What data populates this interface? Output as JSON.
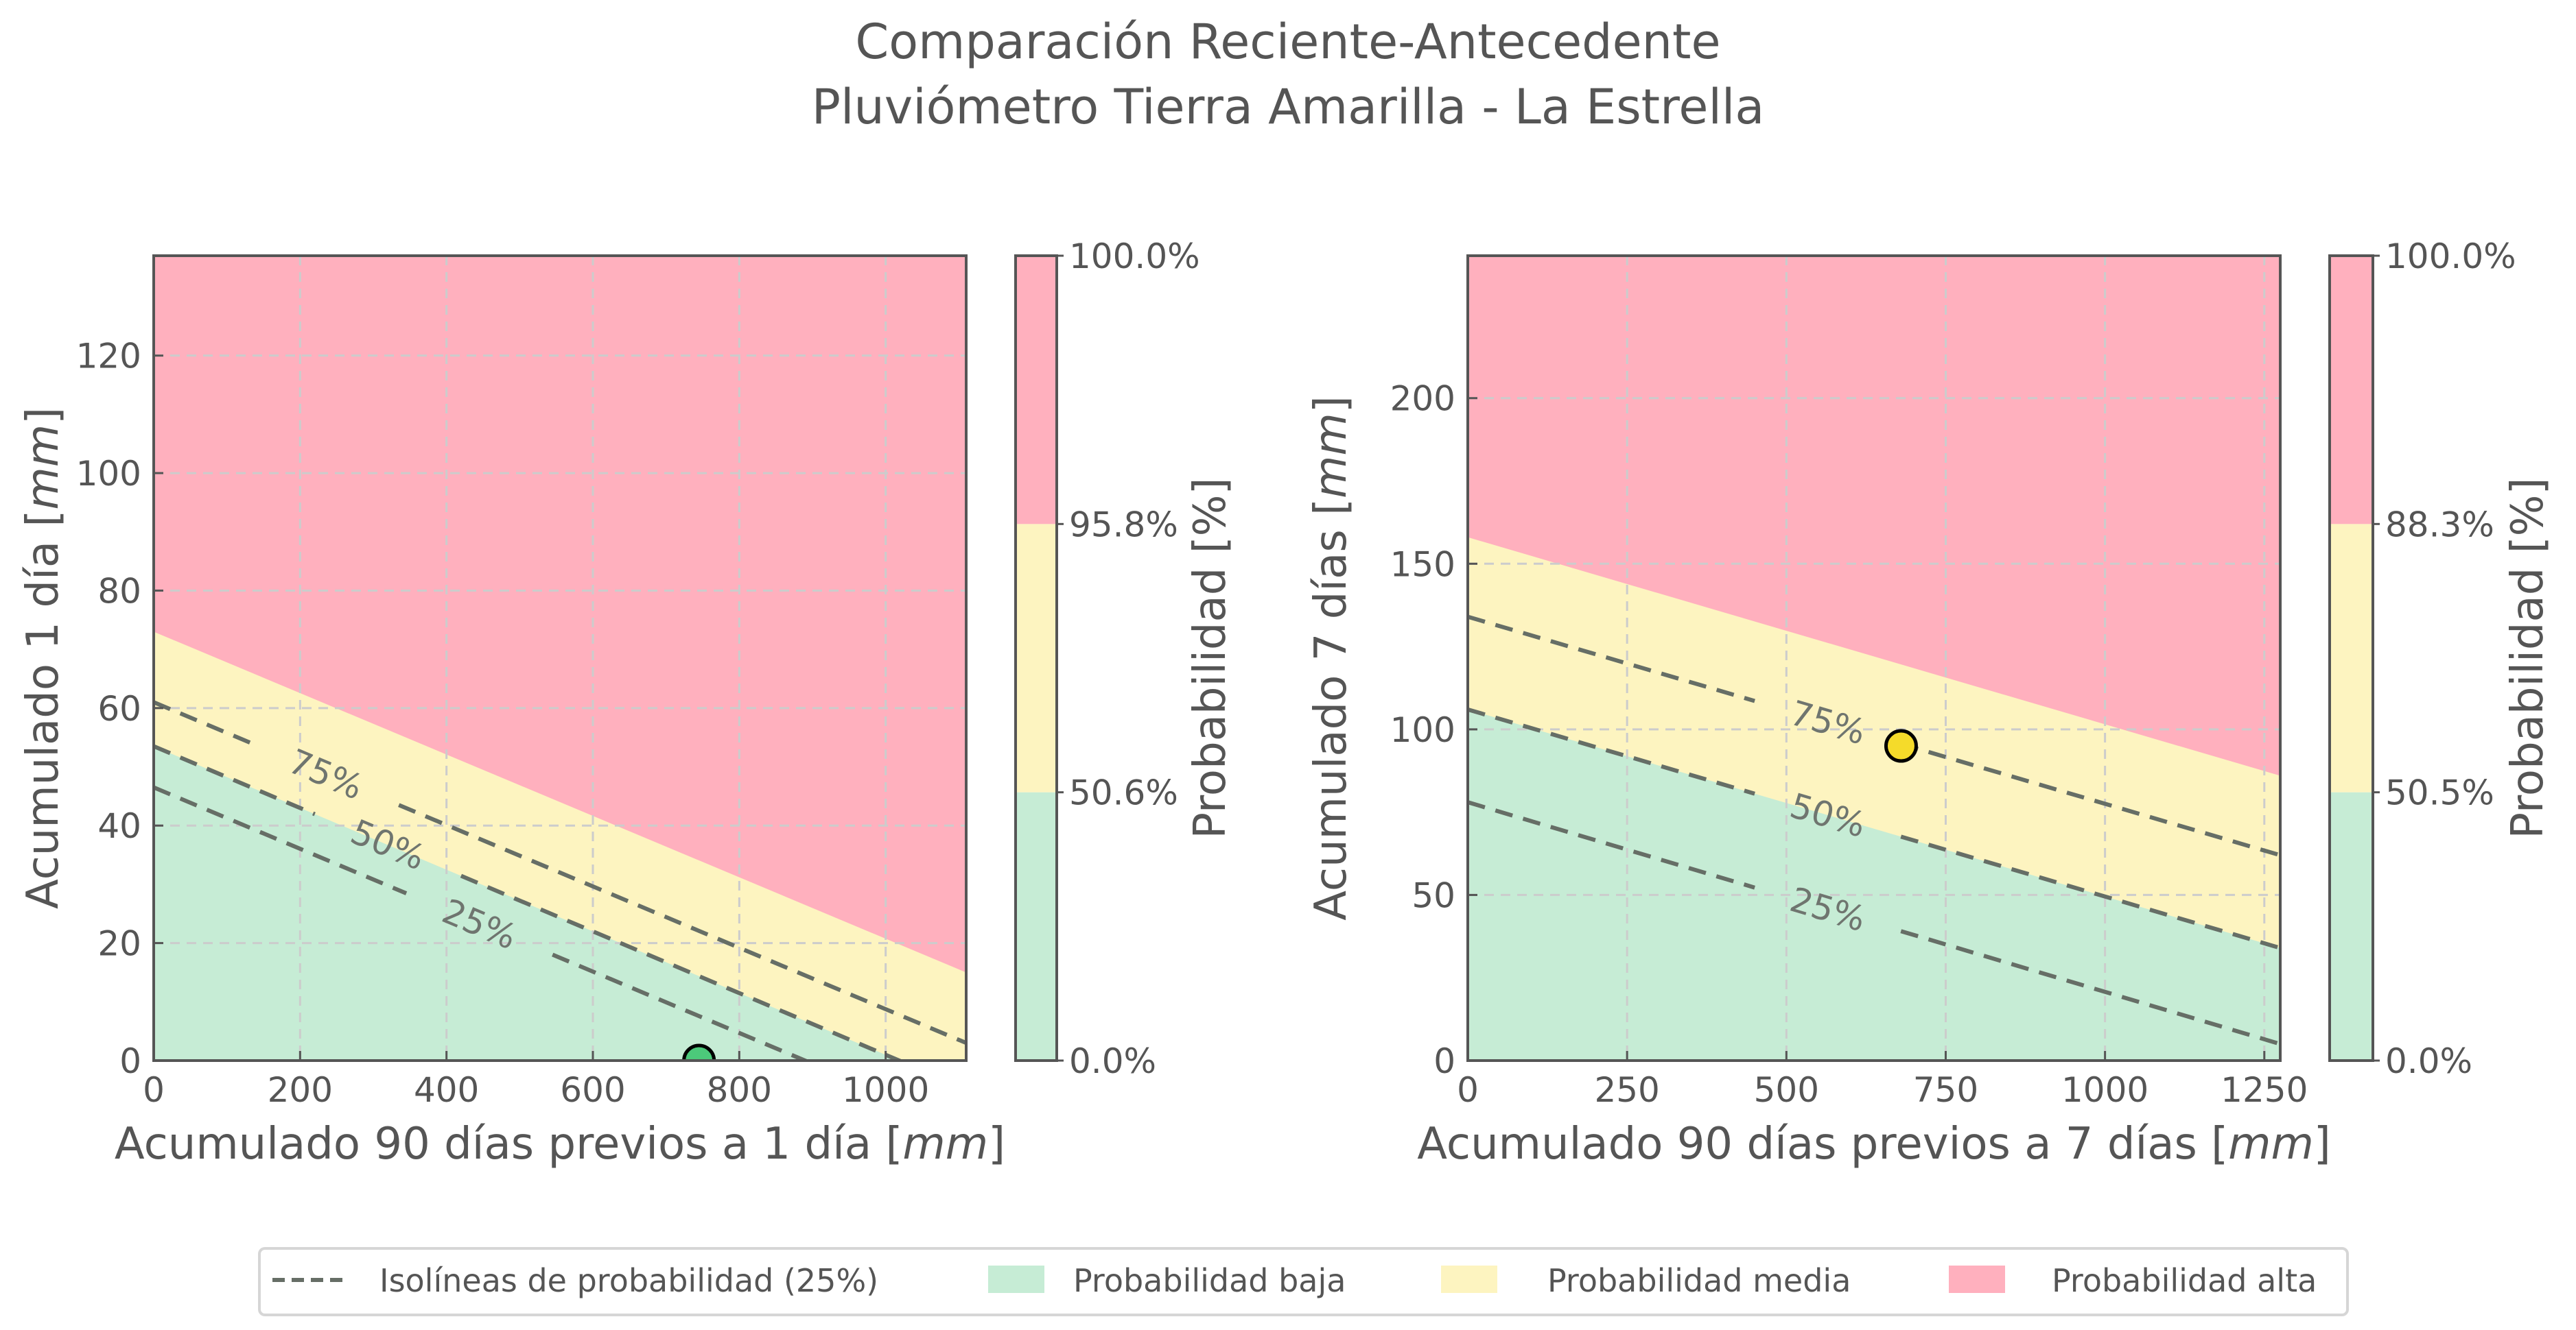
{
  "title": {
    "line1": "Comparación Reciente-Antecedente",
    "line2": "Pluviómetro Tierra Amarilla - La Estrella"
  },
  "colors": {
    "low": "#c6ecd5",
    "medium": "#fdf4c0",
    "high": "#ffb0be",
    "isoline": "#666e66",
    "text": "#555555"
  },
  "legend": {
    "placement": "bottom-center",
    "items": [
      {
        "label": "Isolíneas de probabilidad (25%)",
        "kind": "dashed-line"
      },
      {
        "label": "Probabilidad baja",
        "kind": "patch",
        "color": "#c6ecd5"
      },
      {
        "label": "Probabilidad media",
        "kind": "patch",
        "color": "#fdf4c0"
      },
      {
        "label": "Probabilidad alta",
        "kind": "patch",
        "color": "#ffb0be"
      }
    ]
  },
  "chart_data": [
    {
      "type": "area",
      "xlabel": "Acumulado 90 días previos a 1 día",
      "xlabel_unit": "mm",
      "ylabel": "Acumulado 1 día",
      "ylabel_unit": "mm",
      "xlim": [
        0,
        1110
      ],
      "ylim": [
        0,
        137
      ],
      "xticks": [
        0,
        200,
        400,
        600,
        800,
        1000
      ],
      "yticks": [
        0,
        20,
        40,
        60,
        80,
        100,
        120
      ],
      "grid": true,
      "regions": {
        "low_medium_boundary": [
          [
            0,
            53.5
          ],
          [
            1110,
            -4.8
          ]
        ],
        "medium_high_boundary": [
          [
            0,
            73
          ],
          [
            1110,
            15
          ]
        ]
      },
      "isolines": [
        {
          "label": "75%",
          "line": [
            [
              0,
              61
            ],
            [
              1110,
              3
            ]
          ],
          "label_at": [
            235,
            48.7
          ]
        },
        {
          "label": "50%",
          "line": [
            [
              0,
              53.5
            ],
            [
              1110,
              -4.8
            ]
          ],
          "label_at": [
            320,
            36.7
          ]
        },
        {
          "label": "25%",
          "line": [
            [
              0,
              46.5
            ],
            [
              1110,
              -11.5
            ]
          ],
          "label_at": [
            445,
            23.2
          ]
        }
      ],
      "point": {
        "x": 745,
        "y": 0,
        "color": "#4cc97a"
      },
      "colorbar": {
        "label": "Probabilidad [%]",
        "ticks": [
          "0.0%",
          "50.6%",
          "95.8%",
          "100.0%"
        ]
      }
    },
    {
      "type": "area",
      "xlabel": "Acumulado 90 días previos a 7 días",
      "xlabel_unit": "mm",
      "ylabel": "Acumulado 7 días",
      "ylabel_unit": "mm",
      "xlim": [
        0,
        1275
      ],
      "ylim": [
        0,
        243
      ],
      "xticks": [
        0,
        250,
        500,
        750,
        1000,
        1250
      ],
      "yticks": [
        0,
        50,
        100,
        150,
        200
      ],
      "grid": true,
      "regions": {
        "low_medium_boundary": [
          [
            0,
            106
          ],
          [
            1275,
            34
          ]
        ],
        "medium_high_boundary": [
          [
            0,
            158
          ],
          [
            1275,
            86
          ]
        ]
      },
      "isolines": [
        {
          "label": "75%",
          "line": [
            [
              0,
              134
            ],
            [
              1275,
              62
            ]
          ],
          "label_at": [
            565,
            102
          ]
        },
        {
          "label": "50%",
          "line": [
            [
              0,
              106
            ],
            [
              1275,
              34
            ]
          ],
          "label_at": [
            565,
            74
          ]
        },
        {
          "label": "25%",
          "line": [
            [
              0,
              78
            ],
            [
              1275,
              5
            ]
          ],
          "label_at": [
            565,
            45.6
          ]
        }
      ],
      "point": {
        "x": 680,
        "y": 95,
        "color": "#f5db2a"
      },
      "colorbar": {
        "label": "Probabilidad [%]",
        "ticks": [
          "0.0%",
          "50.5%",
          "88.3%",
          "100.0%"
        ]
      }
    }
  ]
}
